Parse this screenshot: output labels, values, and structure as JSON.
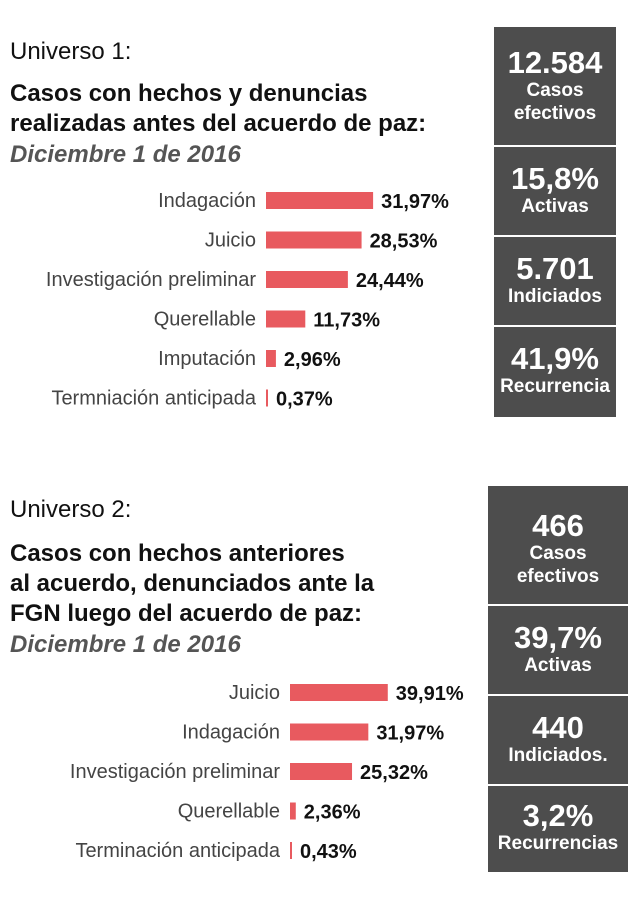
{
  "colors": {
    "bar": "#e85a5f",
    "panel": "#4d4d4d",
    "text": "#111111",
    "date": "#555555"
  },
  "universe1": {
    "label": "Universo 1:",
    "title_line1": "Casos con hechos y denuncias",
    "title_line2": "realizadas antes del acuerdo de paz:",
    "date": "Diciembre 1 de 2016",
    "stats": [
      {
        "value": "12.584",
        "label_line1": "Casos",
        "label_line2": "efectivos"
      },
      {
        "value": "15,8%",
        "label_line1": "Activas"
      },
      {
        "value": "5.701",
        "label_line1": "Indiciados"
      },
      {
        "value": "41,9%",
        "label_line1": "Recurrencia"
      }
    ]
  },
  "universe2": {
    "label": "Universo 2:",
    "title_line1": "Casos con hechos anteriores",
    "title_line2": "al acuerdo, denunciados ante la",
    "title_line3": "FGN luego del acuerdo de paz:",
    "date": "Diciembre 1 de 2016",
    "stats": [
      {
        "value": "466",
        "label_line1": "Casos",
        "label_line2": "efectivos"
      },
      {
        "value": "39,7%",
        "label_line1": "Activas"
      },
      {
        "value": "440",
        "label_line1": "Indiciados."
      },
      {
        "value": "3,2%",
        "label_line1": "Recurrencias"
      }
    ]
  },
  "chart_data": [
    {
      "type": "bar",
      "orientation": "horizontal",
      "categories": [
        "Indagación",
        "Juicio",
        "Investigación preliminar",
        "Querellable",
        "Imputación",
        "Termniación anticipada"
      ],
      "values": [
        31.97,
        28.53,
        24.44,
        11.73,
        2.96,
        0.37
      ],
      "value_labels": [
        "31,97%",
        "28,53%",
        "24,44%",
        "11,73%",
        "2,96%",
        "0,37%"
      ],
      "grid": false,
      "legend": "none"
    },
    {
      "type": "bar",
      "orientation": "horizontal",
      "categories": [
        "Juicio",
        "Indagación",
        "Investigación preliminar",
        "Querellable",
        "Terminación anticipada"
      ],
      "values": [
        39.91,
        31.97,
        25.32,
        2.36,
        0.43
      ],
      "value_labels": [
        "39,91%",
        "31,97%",
        "25,32%",
        "2,36%",
        "0,43%"
      ],
      "grid": false,
      "legend": "none"
    }
  ]
}
